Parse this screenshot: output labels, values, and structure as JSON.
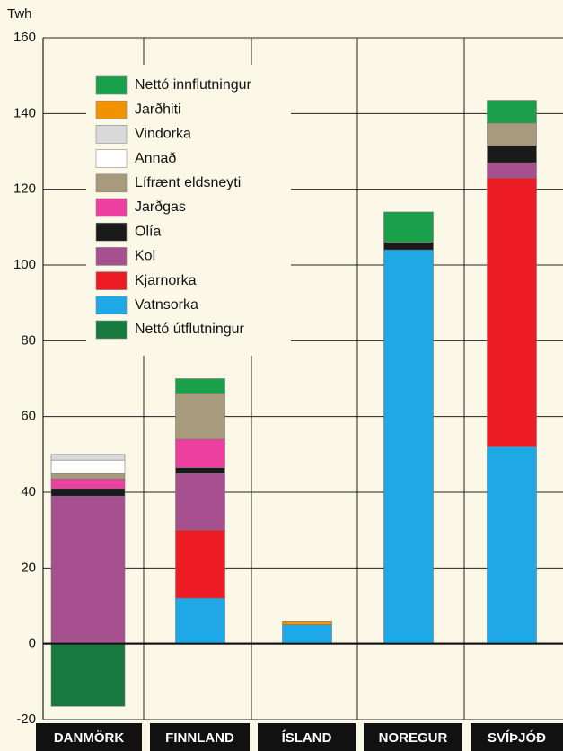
{
  "chart_data": {
    "type": "stacked_bar",
    "y_label": "Twh",
    "categories": [
      "DANMÖRK",
      "FINNLAND",
      "ÍSLAND",
      "NOREGUR",
      "SVÍÞJÓÐ"
    ],
    "ylim": [
      -20,
      160
    ],
    "yticks": [
      -20,
      0,
      20,
      40,
      60,
      80,
      100,
      120,
      140,
      160
    ],
    "grid": true,
    "series": [
      {
        "name": "Nettó innflutningur",
        "color": "#1a9f4b",
        "values": [
          null,
          4,
          null,
          8,
          6
        ]
      },
      {
        "name": "Jarðhiti",
        "color": "#f39200",
        "values": [
          null,
          null,
          1,
          null,
          null
        ]
      },
      {
        "name": "Vindorka",
        "color": "#d9d9d9",
        "values": [
          1.5,
          null,
          null,
          null,
          null
        ]
      },
      {
        "name": "Annað",
        "color": "#ffffff",
        "values": [
          3.5,
          null,
          null,
          null,
          null
        ]
      },
      {
        "name": "Lífrænt eldsneyti",
        "color": "#a89a7c",
        "values": [
          1.5,
          12,
          null,
          null,
          6
        ]
      },
      {
        "name": "Jarðgas",
        "color": "#ec3fa0",
        "values": [
          2.5,
          7.5,
          null,
          null,
          null
        ]
      },
      {
        "name": "Olía",
        "color": "#1a1a1a",
        "values": [
          2,
          1.5,
          null,
          2,
          4.5
        ]
      },
      {
        "name": "Kol",
        "color": "#a6508f",
        "values": [
          39,
          15,
          null,
          null,
          4
        ]
      },
      {
        "name": "Kjarnorka",
        "color": "#ed1c24",
        "values": [
          null,
          18,
          null,
          null,
          71
        ]
      },
      {
        "name": "Vatnsorka",
        "color": "#1fa8e6",
        "values": [
          null,
          12,
          5,
          104,
          52
        ]
      },
      {
        "name": "Nettó útflutningur",
        "color": "#17793d",
        "values": [
          -16.5,
          null,
          null,
          null,
          null
        ]
      }
    ]
  }
}
